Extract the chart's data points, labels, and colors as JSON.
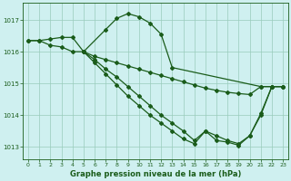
{
  "title": "Graphe pression niveau de la mer (hPa)",
  "background_color": "#cff0f0",
  "grid_color": "#99ccbb",
  "line_color": "#1a5c1a",
  "lines": [
    {
      "x": [
        0,
        1,
        2,
        3,
        4,
        5,
        7,
        8,
        9,
        10,
        11,
        12,
        13,
        21,
        22
      ],
      "y": [
        1016.35,
        1016.35,
        1016.2,
        1016.15,
        1016.0,
        1016.0,
        1016.7,
        1017.05,
        1017.2,
        1017.1,
        1016.9,
        1016.55,
        1015.5,
        1014.9,
        1014.9
      ]
    },
    {
      "x": [
        0,
        1,
        2,
        3,
        4,
        5,
        6,
        7,
        8,
        9,
        10,
        11,
        12,
        13,
        14,
        15,
        16,
        17,
        18,
        19,
        20,
        21,
        22,
        23
      ],
      "y": [
        1016.35,
        1016.35,
        1016.4,
        1016.45,
        1016.45,
        1016.0,
        1015.85,
        1015.75,
        1015.65,
        1015.55,
        1015.45,
        1015.35,
        1015.25,
        1015.15,
        1015.05,
        1014.95,
        1014.85,
        1014.78,
        1014.72,
        1014.68,
        1014.65,
        1014.9,
        1014.9,
        1014.9
      ]
    },
    {
      "x": [
        5,
        6,
        7,
        8,
        9,
        10,
        11,
        12,
        13,
        14,
        15,
        16,
        17,
        18,
        19,
        20,
        21,
        22,
        23
      ],
      "y": [
        1016.0,
        1015.75,
        1015.45,
        1015.2,
        1014.9,
        1014.6,
        1014.3,
        1014.0,
        1013.75,
        1013.5,
        1013.2,
        1013.5,
        1013.35,
        1013.2,
        1013.1,
        1013.35,
        1014.0,
        1014.9,
        1014.9
      ]
    },
    {
      "x": [
        5,
        6,
        7,
        8,
        9,
        10,
        11,
        12,
        13,
        14,
        15,
        16,
        17,
        18,
        19,
        20,
        21,
        22,
        23
      ],
      "y": [
        1016.0,
        1015.65,
        1015.3,
        1014.95,
        1014.6,
        1014.3,
        1014.0,
        1013.75,
        1013.5,
        1013.25,
        1013.1,
        1013.5,
        1013.2,
        1013.15,
        1013.05,
        1013.35,
        1014.05,
        1014.9,
        1014.9
      ]
    }
  ],
  "xlim": [
    -0.5,
    23.5
  ],
  "ylim": [
    1012.6,
    1017.55
  ],
  "yticks": [
    1013,
    1014,
    1015,
    1016,
    1017
  ],
  "xticks": [
    0,
    1,
    2,
    3,
    4,
    5,
    6,
    7,
    8,
    9,
    10,
    11,
    12,
    13,
    14,
    15,
    16,
    17,
    18,
    19,
    20,
    21,
    22,
    23
  ],
  "marker": "D",
  "marker_size": 2.0,
  "line_width": 0.9,
  "xlabel_fontsize": 6.0,
  "tick_fontsize": 5.0
}
